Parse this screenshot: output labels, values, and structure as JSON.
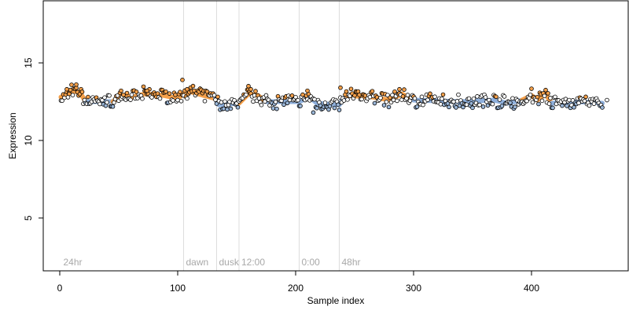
{
  "chart_data": {
    "type": "scatter",
    "xlabel": "Sample index",
    "ylabel": "Expression",
    "xlim": [
      -14,
      482
    ],
    "ylim": [
      1.6,
      19.0
    ],
    "x_ticks": [
      0,
      100,
      200,
      300,
      400
    ],
    "y_ticks": [
      5,
      10,
      15
    ],
    "grid": false,
    "legend": "none",
    "point_count": 460,
    "baseline": 12.6,
    "regions": [
      {
        "label": "24hr",
        "x": 1
      },
      {
        "label": "dawn",
        "x": 105
      },
      {
        "label": "dusk",
        "x": 133
      },
      {
        "label": "12:00",
        "x": 152
      },
      {
        "label": "0:00",
        "x": 203
      },
      {
        "label": "48hr",
        "x": 237
      }
    ],
    "colors": {
      "point_default": "#ffffff",
      "point_high": "#f5a04a",
      "point_low": "#9bb7d9",
      "point_outline": "#000000",
      "smooth_high": "#f5a04a",
      "smooth_low": "#8fb0dc",
      "separator": "#dddddd",
      "region_label": "#a8a8a8"
    },
    "segments": [
      {
        "x0": 1,
        "x1": 4,
        "y0": 12.8,
        "y1": 12.8
      },
      {
        "x0": 4,
        "x1": 10,
        "y0": 12.8,
        "y1": 13.2
      },
      {
        "x0": 10,
        "x1": 17,
        "y0": 13.2,
        "y1": 13.1
      },
      {
        "x0": 17,
        "x1": 22,
        "y0": 13.1,
        "y1": 12.5
      },
      {
        "x0": 22,
        "x1": 45,
        "y0": 12.5,
        "y1": 12.5
      },
      {
        "x0": 45,
        "x1": 52,
        "y0": 12.5,
        "y1": 12.9
      },
      {
        "x0": 52,
        "x1": 62,
        "y0": 12.9,
        "y1": 12.8
      },
      {
        "x0": 62,
        "x1": 72,
        "y0": 12.8,
        "y1": 13.0
      },
      {
        "x0": 72,
        "x1": 88,
        "y0": 13.0,
        "y1": 12.9
      },
      {
        "x0": 88,
        "x1": 100,
        "y0": 12.9,
        "y1": 12.7
      },
      {
        "x0": 100,
        "x1": 108,
        "y0": 12.7,
        "y1": 13.2
      },
      {
        "x0": 108,
        "x1": 122,
        "y0": 13.2,
        "y1": 12.9
      },
      {
        "x0": 122,
        "x1": 132,
        "y0": 12.9,
        "y1": 12.7
      },
      {
        "x0": 132,
        "x1": 135,
        "y0": 12.7,
        "y1": 12.3
      },
      {
        "x0": 135,
        "x1": 152,
        "y0": 12.3,
        "y1": 12.4
      },
      {
        "x0": 152,
        "x1": 160,
        "y0": 12.4,
        "y1": 13.0
      },
      {
        "x0": 160,
        "x1": 168,
        "y0": 13.0,
        "y1": 12.9
      },
      {
        "x0": 168,
        "x1": 175,
        "y0": 12.9,
        "y1": 12.5
      },
      {
        "x0": 175,
        "x1": 203,
        "y0": 12.5,
        "y1": 12.5
      },
      {
        "x0": 203,
        "x1": 212,
        "y0": 12.5,
        "y1": 12.8
      },
      {
        "x0": 212,
        "x1": 218,
        "y0": 12.8,
        "y1": 12.4
      },
      {
        "x0": 218,
        "x1": 237,
        "y0": 12.4,
        "y1": 12.3
      },
      {
        "x0": 237,
        "x1": 243,
        "y0": 12.3,
        "y1": 12.9
      },
      {
        "x0": 243,
        "x1": 265,
        "y0": 12.9,
        "y1": 12.8
      },
      {
        "x0": 265,
        "x1": 280,
        "y0": 12.8,
        "y1": 12.6
      },
      {
        "x0": 280,
        "x1": 290,
        "y0": 12.6,
        "y1": 13.0
      },
      {
        "x0": 290,
        "x1": 300,
        "y0": 13.0,
        "y1": 12.6
      },
      {
        "x0": 300,
        "x1": 340,
        "y0": 12.6,
        "y1": 12.5
      },
      {
        "x0": 340,
        "x1": 368,
        "y0": 12.5,
        "y1": 12.6
      },
      {
        "x0": 368,
        "x1": 380,
        "y0": 12.6,
        "y1": 12.4
      },
      {
        "x0": 380,
        "x1": 392,
        "y0": 12.4,
        "y1": 12.6
      },
      {
        "x0": 392,
        "x1": 400,
        "y0": 12.6,
        "y1": 12.9
      },
      {
        "x0": 400,
        "x1": 405,
        "y0": 12.9,
        "y1": 12.6
      },
      {
        "x0": 405,
        "x1": 412,
        "y0": 12.6,
        "y1": 13.0
      },
      {
        "x0": 412,
        "x1": 417,
        "y0": 13.0,
        "y1": 12.4
      },
      {
        "x0": 417,
        "x1": 440,
        "y0": 12.4,
        "y1": 12.5
      },
      {
        "x0": 440,
        "x1": 460,
        "y0": 12.5,
        "y1": 12.4
      }
    ],
    "outliers": [
      {
        "x": 6,
        "y": 13.3
      },
      {
        "x": 8,
        "y": 13.0
      },
      {
        "x": 14,
        "y": 13.6
      },
      {
        "x": 52,
        "y": 13.2
      },
      {
        "x": 74,
        "y": 13.2
      },
      {
        "x": 104,
        "y": 13.9
      },
      {
        "x": 108,
        "y": 13.3
      },
      {
        "x": 160,
        "y": 13.5
      },
      {
        "x": 162,
        "y": 13.3
      },
      {
        "x": 210,
        "y": 13.2
      },
      {
        "x": 215,
        "y": 11.8
      },
      {
        "x": 238,
        "y": 13.4
      },
      {
        "x": 288,
        "y": 13.3
      },
      {
        "x": 464,
        "y": 12.6
      }
    ]
  }
}
